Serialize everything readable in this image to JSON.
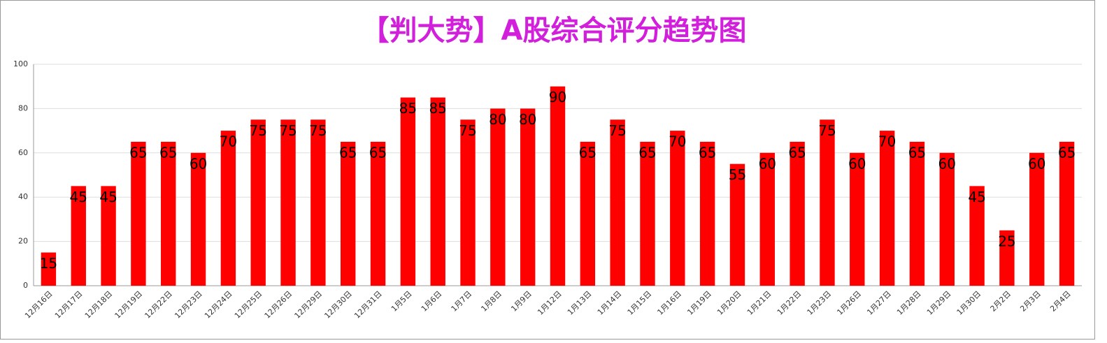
{
  "chart_data": {
    "type": "bar",
    "title": "【判大势】A股综合评分趋势图",
    "categories": [
      "12月16日",
      "12月17日",
      "12月18日",
      "12月19日",
      "12月22日",
      "12月23日",
      "12月24日",
      "12月25日",
      "12月26日",
      "12月29日",
      "12月30日",
      "12月31日",
      "1月5日",
      "1月6日",
      "1月7日",
      "1月8日",
      "1月9日",
      "1月12日",
      "1月13日",
      "1月14日",
      "1月15日",
      "1月16日",
      "1月19日",
      "1月20日",
      "1月21日",
      "1月22日",
      "1月23日",
      "1月26日",
      "1月27日",
      "1月28日",
      "1月29日",
      "1月30日",
      "2月2日",
      "2月3日",
      "2月4日"
    ],
    "values": [
      15,
      45,
      45,
      65,
      65,
      60,
      70,
      75,
      75,
      75,
      65,
      65,
      85,
      85,
      75,
      80,
      80,
      90,
      65,
      75,
      65,
      70,
      65,
      55,
      60,
      65,
      75,
      60,
      70,
      65,
      60,
      45,
      25,
      60,
      65
    ],
    "color": "#ff0000",
    "ylim": [
      0,
      100
    ],
    "yticks": [
      0,
      20,
      40,
      60,
      80,
      100
    ],
    "grid": true
  }
}
